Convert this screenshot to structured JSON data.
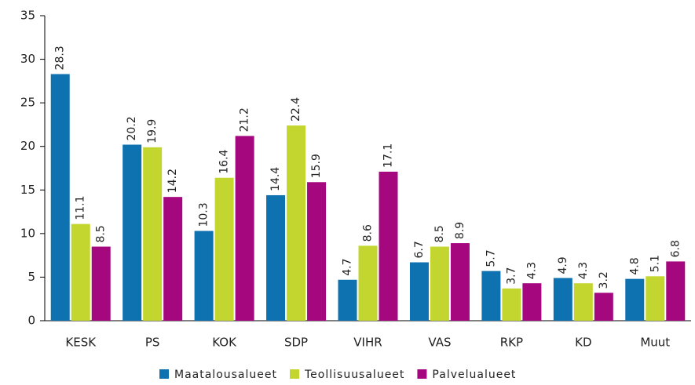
{
  "chart_data": {
    "type": "bar",
    "categories": [
      "KESK",
      "PS",
      "KOK",
      "SDP",
      "VIHR",
      "VAS",
      "RKP",
      "KD",
      "Muut"
    ],
    "series": [
      {
        "name": "Maatalousalueet",
        "color": "#0f72b0",
        "values": [
          28.3,
          20.2,
          10.3,
          14.4,
          4.7,
          6.7,
          5.7,
          4.9,
          4.8
        ]
      },
      {
        "name": "Teollisuusalueet",
        "color": "#c3d62f",
        "values": [
          11.1,
          19.9,
          16.4,
          22.4,
          8.6,
          8.5,
          3.7,
          4.3,
          5.1
        ]
      },
      {
        "name": "Palvelualueet",
        "color": "#a5077f",
        "values": [
          8.5,
          14.2,
          21.2,
          15.9,
          17.1,
          8.9,
          4.3,
          3.2,
          6.8
        ]
      }
    ],
    "ylim": [
      0,
      35
    ],
    "yticks": [
      0,
      5,
      10,
      15,
      20,
      25,
      30,
      35
    ],
    "grid": false
  }
}
